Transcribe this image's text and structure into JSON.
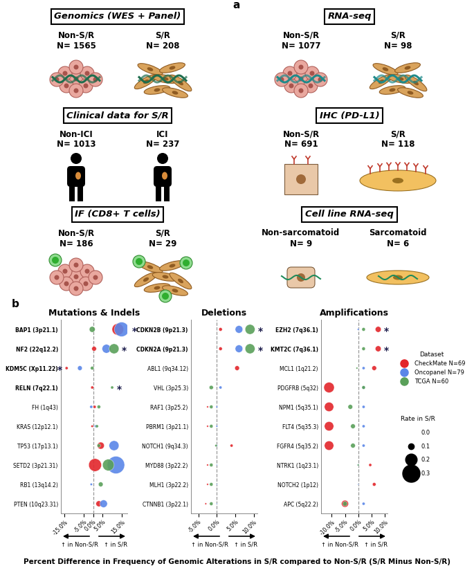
{
  "panel_a": {
    "label": "a",
    "boxes": [
      {
        "title": "Genomics (WES + Panel)",
        "groups": [
          {
            "name": "Non-S/R",
            "n": "N= 1565"
          },
          {
            "name": "S/R",
            "n": "N= 208"
          }
        ]
      },
      {
        "title": "RNA-seq",
        "groups": [
          {
            "name": "Non-S/R",
            "n": "N= 1077"
          },
          {
            "name": "S/R",
            "n": "N= 98"
          }
        ]
      },
      {
        "title": "Clinical data for S/R",
        "groups": [
          {
            "name": "Non-ICI",
            "n": "N= 1013"
          },
          {
            "name": "ICI",
            "n": "N= 237"
          }
        ]
      },
      {
        "title": "IHC (PD-L1)",
        "groups": [
          {
            "name": "Non-S/R",
            "n": "N= 691"
          },
          {
            "name": "S/R",
            "n": "N= 118"
          }
        ]
      },
      {
        "title": "IF (CD8+ T cells)",
        "groups": [
          {
            "name": "Non-S/R",
            "n": "N= 186"
          },
          {
            "name": "S/R",
            "n": "N= 29"
          }
        ]
      },
      {
        "title": "Cell line RNA-seq",
        "groups": [
          {
            "name": "Non-sarcomatoid",
            "n": "N= 9"
          },
          {
            "name": "Sarcomatoid",
            "n": "N= 6"
          }
        ]
      }
    ]
  },
  "panel_b": {
    "label": "b",
    "xlabel": "Percent Difference in Frequency of Genomic Alterations in S/R compared to Non-S/R (S/R Minus Non-S/R)",
    "left_note": "↑ in Non-S/R",
    "right_note": "↑ in S/R",
    "legend": "upper left",
    "legend_title": "Dataset",
    "size_legend": {
      "title": "Rate in S/R",
      "values": [
        0.0,
        0.1,
        0.2,
        0.3
      ]
    }
  },
  "chart_data": [
    {
      "type": "scatter",
      "title": "Mutations & Indels",
      "categories": [
        "BAP1 (3p21.1)",
        "NF2 (22q12.2)",
        "KDM5C (Xp11.22)",
        "RELN (7q22.1)",
        "FH (1q43)",
        "KRAS (12p12.1)",
        "TP53 (17p13.1)",
        "SETD2 (3p21.31)",
        "RB1 (13q14.2)",
        "PTEN (10q23.31)"
      ],
      "xlim": [
        -17,
        18
      ],
      "xticks": [
        {
          "value": -15,
          "label": "-15.0%"
        },
        {
          "value": -5,
          "label": "-5.0%"
        },
        {
          "value": 0,
          "label": "0.0%"
        },
        {
          "value": 5,
          "label": "5.0%"
        },
        {
          "value": 15,
          "label": "15.0%"
        }
      ],
      "series": [
        {
          "name": "CheckMate N=69",
          "color": "#e3262b",
          "values": [
            13,
            0.5,
            -14,
            -0.5,
            0.8,
            -0.5,
            4,
            1,
            null,
            3
          ],
          "sizes": [
            0.2,
            0.08,
            0.05,
            0.05,
            0.05,
            0.04,
            0.12,
            0.22,
            null,
            0.1
          ]
        },
        {
          "name": "Oncopanel N=79",
          "color": "#5a86e8",
          "values": [
            15,
            7,
            -7,
            null,
            -1,
            1.5,
            11,
            12,
            -1,
            5.5
          ],
          "sizes": [
            0.25,
            0.15,
            0.08,
            null,
            0.05,
            0.05,
            0.17,
            0.3,
            0.04,
            0.13
          ]
        },
        {
          "name": "TCGA N=60",
          "color": "#5aa05a",
          "values": [
            -0.5,
            11,
            -0.5,
            10,
            3,
            2,
            3,
            8,
            4,
            null
          ],
          "sizes": [
            0.1,
            0.17,
            0.06,
            0.05,
            0.06,
            0.05,
            0.06,
            0.2,
            0.08,
            null
          ]
        }
      ],
      "annotations": [
        {
          "text": "*",
          "category": "BAP1 (3p21.1)"
        },
        {
          "text": "*",
          "category": "NF2 (22q12.2)"
        },
        {
          "text": "*",
          "category": "KDM5C (Xp11.22)"
        },
        {
          "text": "*",
          "category": "RELN (7q22.1)"
        }
      ]
    },
    {
      "type": "scatter",
      "title": "Deletions",
      "categories": [
        "CDKN2B (9p21.3)",
        "CDKN2A (9p21.3)",
        "ABL1 (9q34.12)",
        "VHL (3p25.3)",
        "RAF1 (3p25.2)",
        "PBRM1 (3p21.1)",
        "NOTCH1 (9q34.3)",
        "MYD88 (3p22.2)",
        "MLH1 (3p22.2)",
        "CTNNB1 (3p22.1)"
      ],
      "xlim": [
        -7,
        11
      ],
      "xticks": [
        {
          "value": -5,
          "label": "-5.0%"
        },
        {
          "value": 0,
          "label": "0.0%"
        },
        {
          "value": 5,
          "label": "5.0%"
        },
        {
          "value": 10,
          "label": "10.0%"
        }
      ],
      "series": [
        {
          "name": "CheckMate N=69",
          "color": "#e3262b",
          "values": [
            1,
            1,
            5.5,
            null,
            -2.5,
            -2.5,
            4,
            -2.5,
            -2.5,
            -3
          ],
          "sizes": [
            0.06,
            0.06,
            0.08,
            null,
            0.03,
            0.03,
            0.05,
            0.03,
            0.03,
            0.03
          ]
        },
        {
          "name": "Oncopanel N=79",
          "color": "#5a86e8",
          "values": [
            6,
            6,
            null,
            1,
            0,
            0,
            0,
            0,
            0,
            0
          ],
          "sizes": [
            0.13,
            0.13,
            null,
            0.05,
            0.03,
            0.03,
            0.03,
            0.02,
            0.02,
            0.02
          ]
        },
        {
          "name": "TCGA N=60",
          "color": "#5aa05a",
          "values": [
            9,
            9,
            null,
            -1.5,
            -1.5,
            -1.5,
            -0.2,
            -1.5,
            -1.5,
            -1.5
          ],
          "sizes": [
            0.17,
            0.17,
            null,
            0.07,
            0.06,
            0.06,
            0.04,
            0.06,
            0.06,
            0.06
          ]
        }
      ],
      "annotations": [
        {
          "text": "*",
          "category": "CDKN2B (9p21.3)"
        },
        {
          "text": "*",
          "category": "CDKN2A (9p21.3)"
        }
      ]
    },
    {
      "type": "scatter",
      "title": "Amplifications",
      "categories": [
        "EZH2 (7q36.1)",
        "KMT2C (7q36.1)",
        "MCL1 (1q21.2)",
        "PDGFRB (5q32)",
        "NPM1 (5q35.1)",
        "FLT4 (5q35.3)",
        "FGFR4 (5q35.2)",
        "NTRK1 (1q23.1)",
        "NOTCH2 (1p12)",
        "APC (5q22.2)"
      ],
      "xlim": [
        -14,
        11
      ],
      "xticks": [
        {
          "value": -10,
          "label": "-10.0%"
        },
        {
          "value": -5,
          "label": "-5.0%"
        },
        {
          "value": 0,
          "label": "0.0%"
        },
        {
          "value": 5,
          "label": "5.0%"
        },
        {
          "value": 10,
          "label": "10.0%"
        }
      ],
      "series": [
        {
          "name": "CheckMate N=69",
          "color": "#e3262b",
          "values": [
            7.5,
            7.5,
            6,
            -11,
            -11,
            -11,
            -11,
            4.5,
            6,
            -5
          ],
          "sizes": [
            0.1,
            0.1,
            0.08,
            0.18,
            0.16,
            0.16,
            0.16,
            0.05,
            0.06,
            0.12
          ]
        },
        {
          "name": "Oncopanel N=79",
          "color": "#5a86e8",
          "values": [
            0,
            null,
            2,
            2,
            2,
            2,
            2,
            0,
            0,
            2
          ],
          "sizes": [
            0.03,
            null,
            0.05,
            0.05,
            0.05,
            0.05,
            0.05,
            0.03,
            0.02,
            0.05
          ]
        },
        {
          "name": "TCGA N=60",
          "color": "#5aa05a",
          "values": [
            2,
            2,
            -0.5,
            2,
            -3,
            -2,
            -2,
            0,
            null,
            -5
          ],
          "sizes": [
            0.06,
            0.06,
            0.03,
            0.06,
            0.08,
            0.08,
            0.08,
            0.03,
            null,
            0.08
          ]
        }
      ],
      "annotations": [
        {
          "text": "*",
          "category": "EZH2 (7q36.1)"
        },
        {
          "text": "*",
          "category": "KMT2C (7q36.1)"
        }
      ]
    }
  ]
}
